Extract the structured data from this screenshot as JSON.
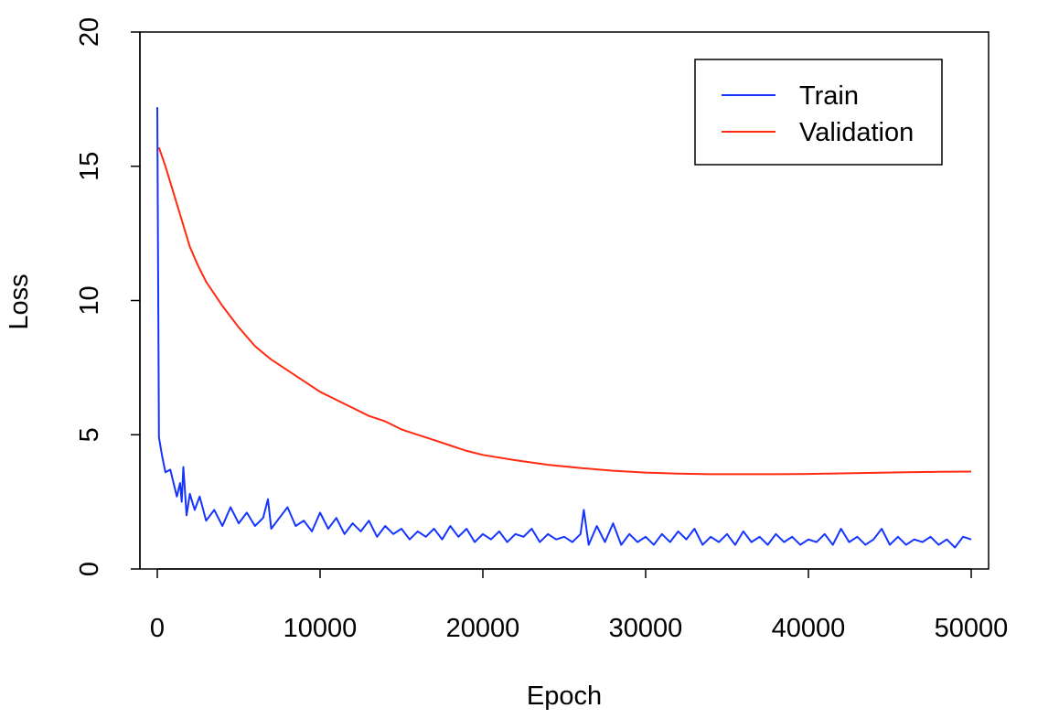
{
  "chart_data": {
    "type": "line",
    "x_label": "Epoch",
    "y_label": "Loss",
    "xlim": [
      -1067,
      51067
    ],
    "ylim": [
      0,
      20
    ],
    "xticks": [
      0,
      10000,
      20000,
      30000,
      40000,
      50000
    ],
    "yticks": [
      0,
      5,
      10,
      15,
      20
    ],
    "legend": "topright",
    "grid": false,
    "series": [
      {
        "name": "Train",
        "color": "#1535ff",
        "x": [
          0,
          100,
          300,
          500,
          800,
          1000,
          1200,
          1400,
          1500,
          1600,
          1800,
          2000,
          2300,
          2600,
          3000,
          3500,
          4000,
          4500,
          5000,
          5500,
          6000,
          6500,
          6800,
          7000,
          7500,
          8000,
          8500,
          9000,
          9500,
          10000,
          10500,
          11000,
          11500,
          12000,
          12500,
          13000,
          13500,
          14000,
          14500,
          15000,
          15500,
          16000,
          16500,
          17000,
          17500,
          18000,
          18500,
          19000,
          19500,
          20000,
          20500,
          21000,
          21500,
          22000,
          22500,
          23000,
          23500,
          24000,
          24500,
          25000,
          25500,
          26000,
          26200,
          26500,
          27000,
          27500,
          28000,
          28500,
          29000,
          29500,
          30000,
          30500,
          31000,
          31500,
          32000,
          32500,
          33000,
          33500,
          34000,
          34500,
          35000,
          35500,
          36000,
          36500,
          37000,
          37500,
          38000,
          38500,
          39000,
          39500,
          40000,
          40500,
          41000,
          41500,
          42000,
          42500,
          43000,
          43500,
          44000,
          44500,
          45000,
          45500,
          46000,
          46500,
          47000,
          47500,
          48000,
          48500,
          49000,
          49500,
          50000
        ],
        "values": [
          17.2,
          4.9,
          4.2,
          3.6,
          3.7,
          3.2,
          2.7,
          3.2,
          2.5,
          3.8,
          2.0,
          2.8,
          2.2,
          2.7,
          1.8,
          2.2,
          1.6,
          2.3,
          1.7,
          2.1,
          1.6,
          1.9,
          2.6,
          1.5,
          1.9,
          2.3,
          1.6,
          1.8,
          1.4,
          2.1,
          1.5,
          1.9,
          1.3,
          1.7,
          1.4,
          1.8,
          1.2,
          1.6,
          1.3,
          1.5,
          1.1,
          1.4,
          1.2,
          1.5,
          1.1,
          1.6,
          1.2,
          1.5,
          1.0,
          1.3,
          1.1,
          1.4,
          1.0,
          1.3,
          1.2,
          1.5,
          1.0,
          1.3,
          1.1,
          1.2,
          1.0,
          1.3,
          2.2,
          0.9,
          1.6,
          1.0,
          1.7,
          0.9,
          1.3,
          1.0,
          1.2,
          0.9,
          1.3,
          1.0,
          1.4,
          1.1,
          1.5,
          0.9,
          1.2,
          1.0,
          1.3,
          0.9,
          1.4,
          1.0,
          1.2,
          0.9,
          1.3,
          1.0,
          1.2,
          0.9,
          1.1,
          1.0,
          1.3,
          0.9,
          1.5,
          1.0,
          1.2,
          0.9,
          1.1,
          1.5,
          0.9,
          1.2,
          0.9,
          1.1,
          1.0,
          1.2,
          0.9,
          1.1,
          0.8,
          1.2,
          1.1
        ]
      },
      {
        "name": "Validation",
        "color": "#ff2a0f",
        "x": [
          100,
          500,
          1000,
          1500,
          2000,
          2500,
          3000,
          4000,
          5000,
          6000,
          7000,
          8000,
          9000,
          10000,
          11000,
          12000,
          13000,
          14000,
          15000,
          16000,
          17000,
          18000,
          19000,
          20000,
          22000,
          24000,
          26000,
          28000,
          30000,
          32000,
          34000,
          36000,
          38000,
          40000,
          42000,
          44000,
          46000,
          48000,
          50000
        ],
        "values": [
          15.7,
          15.0,
          14.0,
          13.0,
          12.0,
          11.3,
          10.7,
          9.8,
          9.0,
          8.3,
          7.8,
          7.4,
          7.0,
          6.6,
          6.3,
          6.0,
          5.7,
          5.5,
          5.2,
          5.0,
          4.8,
          4.6,
          4.4,
          4.25,
          4.05,
          3.88,
          3.76,
          3.66,
          3.59,
          3.55,
          3.53,
          3.53,
          3.53,
          3.54,
          3.56,
          3.58,
          3.6,
          3.62,
          3.63
        ]
      }
    ]
  }
}
